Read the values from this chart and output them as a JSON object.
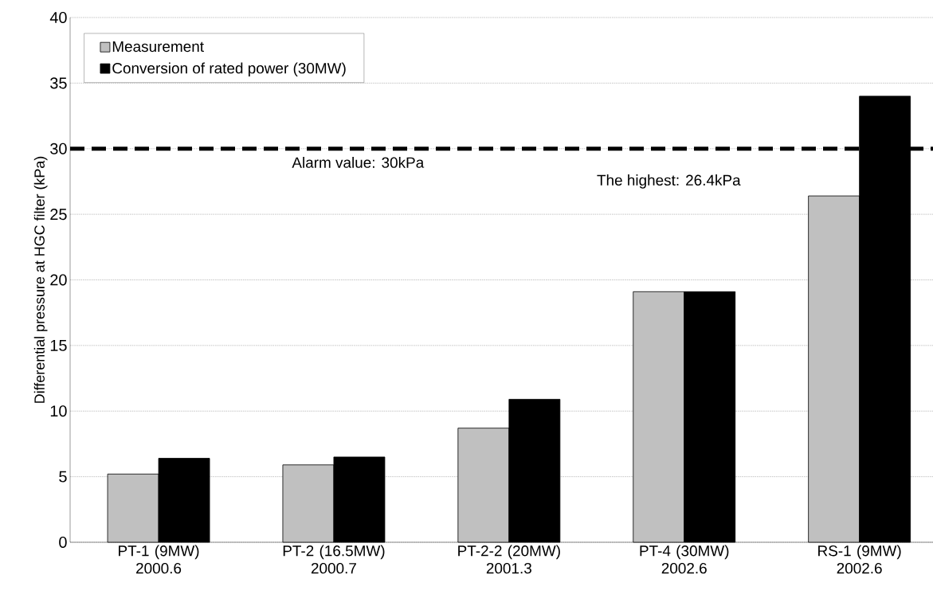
{
  "chart_data": {
    "type": "bar",
    "ylabel": "Differential pressure at HGC filter (kPa)",
    "categories": [
      "PT-1 (9MW) 2000.6",
      "PT-2 (16.5MW) 2000.7",
      "PT-2-2 (20MW) 2001.3",
      "PT-4 (30MW) 2002.6",
      "RS-1 (9MW) 2002.6"
    ],
    "series": [
      {
        "name": "Measurement",
        "color": "#c0c0c0",
        "values": [
          5.2,
          5.9,
          8.7,
          19.1,
          26.4
        ]
      },
      {
        "name": "Conversion of rated power (30MW)",
        "color": "#000000",
        "values": [
          6.4,
          6.5,
          10.9,
          19.1,
          34.0
        ]
      }
    ],
    "ylim": [
      0,
      40
    ],
    "yticks": [
      0,
      5,
      10,
      15,
      20,
      25,
      30,
      35,
      40
    ],
    "grid": "y",
    "legend": "top left",
    "ref_lines": [
      {
        "axis": "y",
        "value": 30,
        "label": "Alarm value: 30kPa",
        "color": "#000000",
        "line_style": "dashed"
      }
    ],
    "annotations": [
      "The highest: 26.4kPa"
    ]
  }
}
